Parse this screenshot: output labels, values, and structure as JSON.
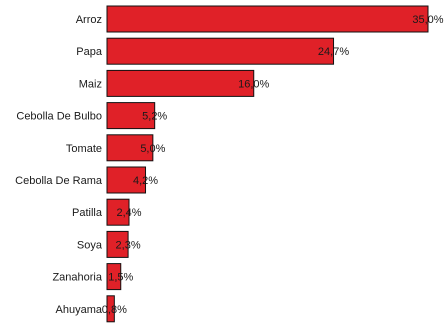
{
  "chart_data": {
    "type": "bar",
    "orientation": "horizontal",
    "categories": [
      "Arroz",
      "Papa",
      "Maiz",
      "Cebolla De Bulbo",
      "Tomate",
      "Cebolla De Rama",
      "Patilla",
      "Soya",
      "Zanahoria",
      "Ahuyama"
    ],
    "values": [
      35.0,
      24.7,
      16.0,
      5.2,
      5.0,
      4.2,
      2.4,
      2.3,
      1.5,
      0.8
    ],
    "value_labels": [
      "35,0%",
      "24,7%",
      "16,0%",
      "5,2%",
      "5,0%",
      "4,2%",
      "2,4%",
      "2,3%",
      "1,5%",
      "0,8%"
    ],
    "unit": "%",
    "xlim": [
      0,
      35.0
    ],
    "bar_color": "#e02128",
    "grid": false,
    "legend": "none"
  }
}
